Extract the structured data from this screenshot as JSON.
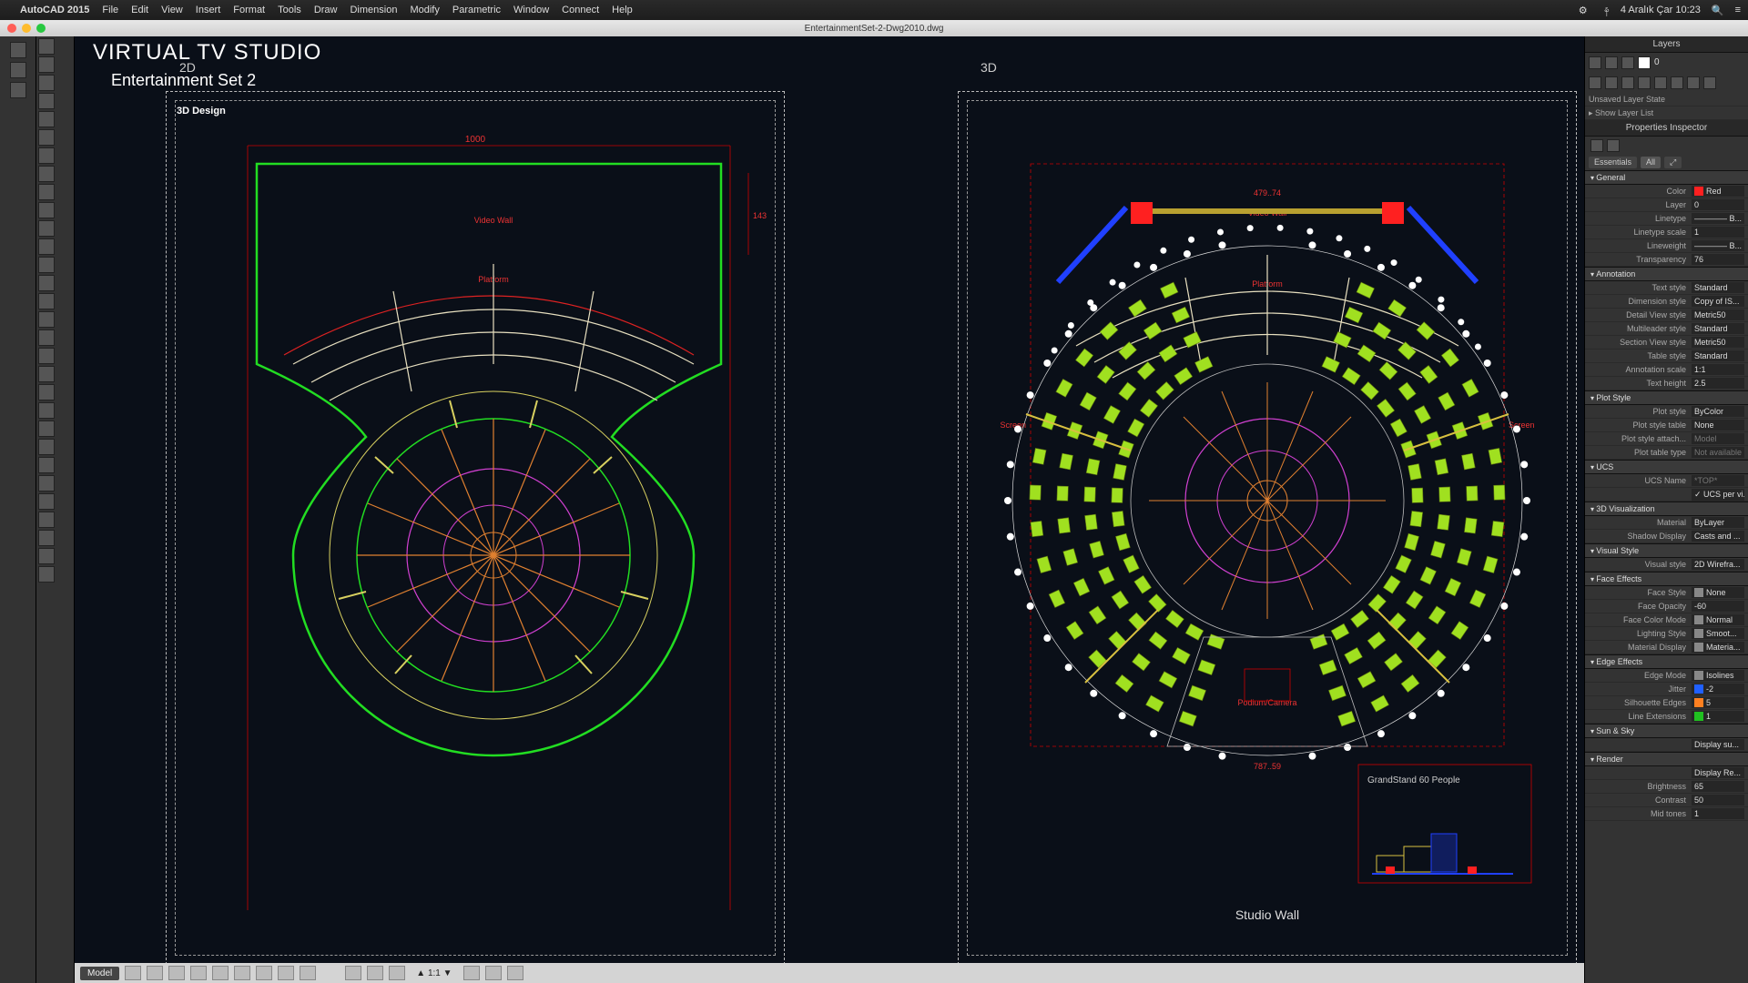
{
  "mac": {
    "app_name": "AutoCAD 2015",
    "menus": [
      "File",
      "Edit",
      "View",
      "Insert",
      "Format",
      "Tools",
      "Draw",
      "Dimension",
      "Modify",
      "Parametric",
      "Window",
      "Connect",
      "Help"
    ],
    "clock": "4 Aralık Çar 10:23"
  },
  "window_title": "EntertainmentSet-2-Dwg2010.dwg",
  "overlay": {
    "title": "VIRTUAL TV STUDIO",
    "subtitle": "Entertainment Set 2"
  },
  "viewports": {
    "left_label": "2D",
    "right_label": "3D",
    "design_label": "3D Design"
  },
  "left_drawing": {
    "dim_top": "1000",
    "dim_side": "143..5",
    "video_wall": "Video Wall",
    "platform": "Platform",
    "green": "#22dd22",
    "red": "#dd2222",
    "magenta": "#d040d0",
    "yellow": "#d8d060",
    "cream": "#e8e0c0",
    "orange": "#e08030"
  },
  "right_drawing": {
    "dim_top": "479..74",
    "dim_bottom": "787..59",
    "video_wall": "Video Wall",
    "platform": "Platform",
    "screen_l": "Screen",
    "screen_r": "Screen",
    "podium": "Podium/Camera",
    "grandstand": "GrandStand 60 People",
    "studio_wall": "Studio Wall",
    "seat_green": "#a0e020",
    "blue": "#2040ff",
    "red_block": "#ff2020"
  },
  "layers_panel": {
    "title": "Layers",
    "unsaved": "Unsaved Layer State",
    "show_list": "Show Layer List",
    "current_layer": "0"
  },
  "props_panel": {
    "title": "Properties Inspector",
    "tabs": {
      "essentials": "Essentials",
      "all": "All"
    },
    "sections": {
      "general": "General",
      "annotation": "Annotation",
      "plot": "Plot Style",
      "ucs": "UCS",
      "viz3d": "3D Visualization",
      "vstyle": "Visual Style",
      "face": "Face Effects",
      "edge": "Edge Effects",
      "sun": "Sun & Sky",
      "render": "Render"
    },
    "general": {
      "color_lbl": "Color",
      "color": "Red",
      "color_hex": "#ff2020",
      "layer_lbl": "Layer",
      "layer": "0",
      "linetype_lbl": "Linetype",
      "linetype": "———— B...",
      "ltscale_lbl": "Linetype scale",
      "ltscale": "1",
      "lweight_lbl": "Lineweight",
      "lweight": "———— B...",
      "transp_lbl": "Transparency",
      "transp": "76"
    },
    "annotation": {
      "textstyle_lbl": "Text style",
      "textstyle": "Standard",
      "dimstyle_lbl": "Dimension style",
      "dimstyle": "Copy of IS...",
      "detail_lbl": "Detail View style",
      "detail": "Metric50",
      "mleader_lbl": "Multileader style",
      "mleader": "Standard",
      "section_lbl": "Section View style",
      "section": "Metric50",
      "table_lbl": "Table style",
      "table": "Standard",
      "annoscale_lbl": "Annotation scale",
      "annoscale": "1:1",
      "txtheight_lbl": "Text height",
      "txtheight": "2.5"
    },
    "plot": {
      "pstyle_lbl": "Plot style",
      "pstyle": "ByColor",
      "ptable_lbl": "Plot style table",
      "ptable": "None",
      "pattach_lbl": "Plot style attach...",
      "pattach": "Model",
      "ptype_lbl": "Plot table type",
      "ptype": "Not available"
    },
    "ucs": {
      "name_lbl": "UCS Name",
      "name": "*TOP*",
      "perview": "UCS per vi..."
    },
    "viz3d": {
      "material_lbl": "Material",
      "material": "ByLayer",
      "shadow_lbl": "Shadow Display",
      "shadow": "Casts and ..."
    },
    "vstyle": {
      "vs_lbl": "Visual style",
      "vs": "2D Wirefra..."
    },
    "face": {
      "fstyle_lbl": "Face Style",
      "fstyle": "None",
      "fopacity_lbl": "Face Opacity",
      "fopacity": "-60",
      "fcolor_lbl": "Face Color Mode",
      "fcolor": "Normal",
      "lighting_lbl": "Lighting Style",
      "lighting": "Smoot...",
      "mdisp_lbl": "Material Display",
      "mdisp": "Materia..."
    },
    "edge": {
      "emode_lbl": "Edge Mode",
      "emode": "Isolines",
      "jitter_lbl": "Jitter",
      "jitter": "-2",
      "jitter_color": "#2060ff",
      "sil_lbl": "Silhouette Edges",
      "sil": "5",
      "sil_color": "#ff8020",
      "lext_lbl": "Line Extensions",
      "lext": "1",
      "lext_color": "#20c020"
    },
    "sun": {
      "disp": "Display su..."
    },
    "render": {
      "disp": "Display Re...",
      "bright_lbl": "Brightness",
      "bright": "65",
      "contrast_lbl": "Contrast",
      "contrast": "50",
      "mid_lbl": "Mid tones",
      "mid": "1"
    }
  },
  "status": {
    "model": "Model",
    "scale": "1:1"
  }
}
